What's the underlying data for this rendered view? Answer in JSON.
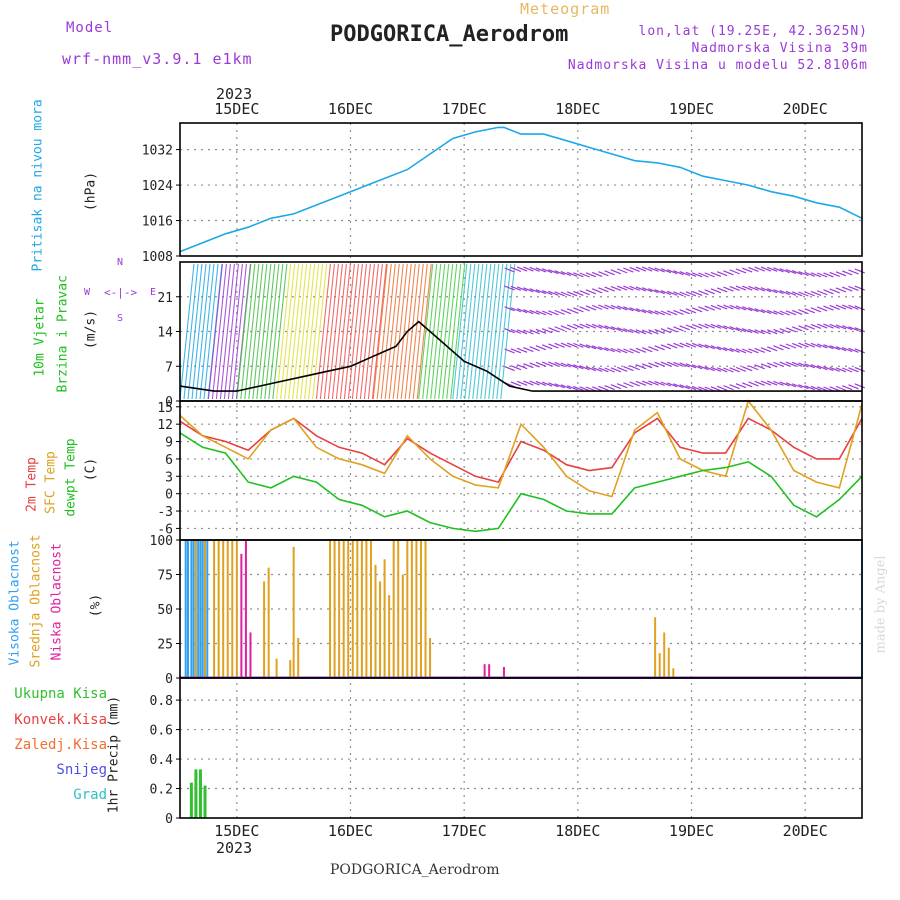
{
  "header": {
    "model_label": "Model",
    "model_name": "wrf-nmm_v3.9.1 e1km",
    "product": "Meteogram",
    "station": "PODGORICA_Aerodrom",
    "coords": "lon,lat (19.25E, 42.3625N)",
    "elevation": "Nadmorska Visina 39m",
    "model_elevation": "Nadmorska Visina u modelu 52.8106m",
    "footer_station": "PODGORICA_Aerodrom",
    "watermark": "made by Angel"
  },
  "colors": {
    "pressure": "#1ea8e8",
    "temp2m": "#e84040",
    "sfc_temp": "#e0a020",
    "dewpt": "#20c020",
    "cloud_high": "#30a0f0",
    "cloud_mid": "#e0a020",
    "cloud_low": "#e020a0",
    "precip_total": "#30c030",
    "purple": "#9a3ad6",
    "grid": "#909090"
  },
  "time_axis": {
    "year": "2023",
    "day_labels": [
      "15DEC",
      "16DEC",
      "17DEC",
      "18DEC",
      "19DEC",
      "20DEC"
    ],
    "start_day": 14.5,
    "end_day": 20.5
  },
  "panel_labels": {
    "pressure": [
      "Pritisak na nivou mora",
      "(hPa)"
    ],
    "wind": [
      "10m Vjetar",
      "Brzina i Pravac",
      "(m/s)"
    ],
    "wind_rose": {
      "n": "N",
      "s": "S",
      "e": "E",
      "w": "W"
    },
    "temperature": [
      "2m Temp",
      "SFC Temp",
      "dewpt Temp",
      "(C)"
    ],
    "cloud": [
      "Visoka Oblacnost",
      "Srednja Oblacnost",
      "Niska Oblacnost",
      "(%)"
    ],
    "precip_legend": [
      "Ukupna Kisa",
      "Konvek.Kisa",
      "Zaledj.Kisa",
      "Snijeg",
      "Grad"
    ],
    "precip_axis": "1hr Precip (mm)"
  },
  "chart_data": [
    {
      "type": "line",
      "name": "pressure",
      "ylabel": "(hPa)",
      "ylim": [
        1008,
        1038
      ],
      "yticks": [
        "1032",
        "1024",
        "1016",
        "1008"
      ],
      "ytick_values": [
        1032,
        1024,
        1016,
        1008
      ],
      "grid": true,
      "series": [
        {
          "name": "pressure",
          "x": [
            14.5,
            14.7,
            14.9,
            15.1,
            15.3,
            15.5,
            15.7,
            15.9,
            16.1,
            16.3,
            16.5,
            16.7,
            16.9,
            17.1,
            17.3,
            17.35,
            17.5,
            17.7,
            17.9,
            18.1,
            18.3,
            18.5,
            18.7,
            18.9,
            19.1,
            19.3,
            19.5,
            19.7,
            19.9,
            20.1,
            20.3,
            20.5
          ],
          "values": [
            1009,
            1011,
            1013,
            1014.5,
            1016.5,
            1017.5,
            1019.5,
            1021.5,
            1023.5,
            1025.5,
            1027.5,
            1031,
            1034.5,
            1036,
            1037,
            1037,
            1035.5,
            1035.5,
            1034,
            1032.5,
            1031,
            1029.5,
            1029,
            1028,
            1026,
            1025,
            1024,
            1022.5,
            1021.5,
            1020,
            1019,
            1016.5
          ]
        }
      ]
    },
    {
      "type": "line",
      "name": "wind",
      "ylabel": "(m/s)",
      "ylim": [
        0,
        28
      ],
      "yticks": [
        "21",
        "14",
        "7",
        "0"
      ],
      "ytick_values": [
        21,
        14,
        7,
        0
      ],
      "grid": true,
      "series": [
        {
          "name": "speed",
          "x": [
            14.5,
            14.8,
            15.0,
            15.2,
            15.4,
            15.6,
            15.8,
            16.0,
            16.2,
            16.4,
            16.5,
            16.6,
            16.8,
            17.0,
            17.2,
            17.4,
            17.6,
            18.0,
            18.5,
            19.0,
            19.5,
            20.0,
            20.5
          ],
          "values": [
            3,
            2,
            2,
            3,
            4,
            5,
            6,
            7,
            9,
            11,
            14,
            16,
            12,
            8,
            6,
            3,
            2,
            2,
            2,
            2,
            2,
            2,
            2
          ]
        }
      ]
    },
    {
      "type": "line",
      "name": "temperature",
      "ylabel": "(C)",
      "ylim": [
        -8,
        16
      ],
      "yticks": [
        "15",
        "12",
        "9",
        "6",
        "3",
        "0",
        "-3",
        "-6"
      ],
      "ytick_values": [
        15,
        12,
        9,
        6,
        3,
        0,
        -3,
        -6
      ],
      "grid": true,
      "series": [
        {
          "name": "2m Temp",
          "x": [
            14.5,
            14.7,
            14.9,
            15.1,
            15.3,
            15.5,
            15.7,
            15.9,
            16.1,
            16.3,
            16.5,
            16.7,
            16.9,
            17.1,
            17.3,
            17.5,
            17.7,
            17.9,
            18.1,
            18.3,
            18.5,
            18.7,
            18.9,
            19.1,
            19.3,
            19.5,
            19.7,
            19.9,
            20.1,
            20.3,
            20.5
          ],
          "values": [
            12.5,
            10,
            9,
            7.5,
            11,
            13,
            10,
            8,
            7,
            5,
            9.5,
            7,
            5,
            3,
            2,
            9,
            7.5,
            5,
            4,
            4.5,
            10.5,
            13,
            8,
            7,
            7,
            13,
            11,
            8,
            6,
            6,
            13
          ]
        },
        {
          "name": "SFC Temp",
          "x": [
            14.5,
            14.7,
            14.9,
            15.1,
            15.3,
            15.5,
            15.7,
            15.9,
            16.1,
            16.3,
            16.5,
            16.7,
            16.9,
            17.1,
            17.3,
            17.5,
            17.7,
            17.9,
            18.1,
            18.3,
            18.5,
            18.7,
            18.9,
            19.1,
            19.3,
            19.5,
            19.7,
            19.9,
            20.1,
            20.3,
            20.5
          ],
          "values": [
            13.5,
            10,
            8,
            6,
            11,
            13,
            8,
            6,
            5,
            3.5,
            10,
            6,
            3,
            1.5,
            1,
            12,
            8,
            3,
            0.5,
            -0.5,
            11,
            14,
            6,
            4,
            3,
            16,
            11,
            4,
            2,
            1,
            15.5
          ]
        },
        {
          "name": "dewpt Temp",
          "x": [
            14.5,
            14.7,
            14.9,
            15.1,
            15.3,
            15.5,
            15.7,
            15.9,
            16.1,
            16.3,
            16.5,
            16.7,
            16.9,
            17.1,
            17.3,
            17.5,
            17.7,
            17.9,
            18.1,
            18.3,
            18.5,
            18.7,
            18.9,
            19.1,
            19.3,
            19.5,
            19.7,
            19.9,
            20.1,
            20.3,
            20.5
          ],
          "values": [
            10.5,
            8,
            7,
            2,
            1,
            3,
            2,
            -1,
            -2,
            -4,
            -3,
            -5,
            -6,
            -6.5,
            -6,
            0,
            -1,
            -3,
            -3.5,
            -3.5,
            1,
            2,
            3,
            4,
            4.5,
            5.5,
            3,
            -2,
            -4,
            -1,
            3
          ]
        }
      ]
    },
    {
      "type": "bar",
      "name": "cloud",
      "ylabel": "(%)",
      "ylim": [
        0,
        100
      ],
      "yticks": [
        "100",
        "75",
        "50",
        "25",
        "0"
      ],
      "ytick_values": [
        100,
        75,
        50,
        25,
        0
      ],
      "grid": true,
      "series": [
        {
          "name": "Visoka Oblacnost",
          "x": [
            14.55,
            14.57,
            14.6,
            14.62,
            14.66,
            14.68,
            14.7,
            14.74,
            20.5
          ],
          "values": [
            100,
            100,
            100,
            100,
            100,
            100,
            100,
            100,
            100
          ]
        },
        {
          "name": "Srednja Oblacnost",
          "x": [
            14.64,
            14.72,
            14.8,
            14.84,
            14.88,
            14.92,
            14.96,
            15.0,
            15.24,
            15.28,
            15.35,
            15.47,
            15.5,
            15.54,
            15.82,
            15.86,
            15.9,
            15.94,
            15.98,
            16.02,
            16.06,
            16.1,
            16.14,
            16.18,
            16.22,
            16.26,
            16.3,
            16.34,
            16.38,
            16.42,
            16.46,
            16.5,
            16.54,
            16.58,
            16.62,
            16.66,
            16.7,
            18.68,
            18.72,
            18.76,
            18.8,
            18.84
          ],
          "values": [
            100,
            100,
            100,
            100,
            100,
            100,
            100,
            100,
            70,
            80,
            14,
            13,
            95,
            29,
            100,
            100,
            100,
            100,
            100,
            100,
            100,
            100,
            100,
            100,
            82,
            70,
            86,
            60,
            100,
            100,
            75,
            100,
            100,
            100,
            100,
            100,
            29,
            44,
            18,
            33,
            22,
            7
          ]
        },
        {
          "name": "Niska Oblacnost",
          "x": [
            15.04,
            15.08,
            15.12,
            17.18,
            17.22,
            17.35
          ],
          "values": [
            90,
            100,
            33,
            10,
            10,
            8
          ]
        }
      ]
    },
    {
      "type": "bar",
      "name": "precip",
      "ylabel": "1hr Precip (mm)",
      "ylim": [
        0,
        0.95
      ],
      "yticks": [
        "0.8",
        "0.6",
        "0.4",
        "0.2",
        "0"
      ],
      "ytick_values": [
        0.8,
        0.6,
        0.4,
        0.2,
        0
      ],
      "grid": true,
      "series": [
        {
          "name": "Ukupna Kisa",
          "x": [
            14.6,
            14.64,
            14.68,
            14.72
          ],
          "values": [
            0.24,
            0.33,
            0.33,
            0.22
          ]
        }
      ]
    }
  ]
}
